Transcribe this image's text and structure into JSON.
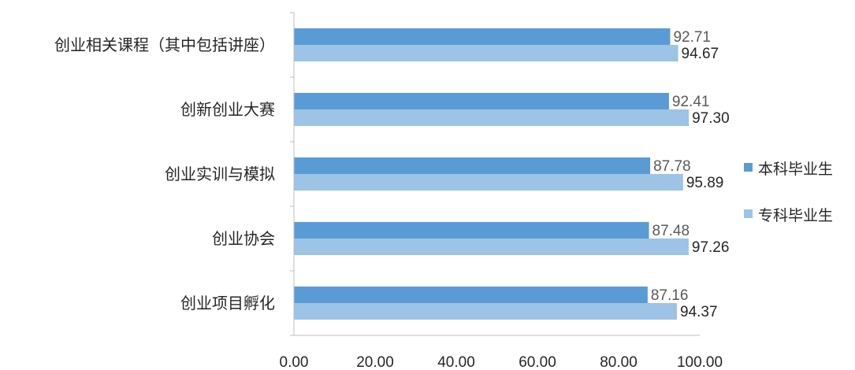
{
  "chart_data": {
    "type": "bar",
    "orientation": "horizontal",
    "categories": [
      "创业相关课程（其中包括讲座）",
      "创新创业大赛",
      "创业实训与模拟",
      "创业协会",
      "创业项目孵化"
    ],
    "series": [
      {
        "name": "本科毕业生",
        "color": "#5B9BD5",
        "values": [
          92.71,
          92.41,
          87.78,
          87.48,
          87.16
        ],
        "labels": [
          "92.71",
          "92.41",
          "87.78",
          "87.48",
          "87.16"
        ]
      },
      {
        "name": "专科毕业生",
        "color": "#9DC3E6",
        "values": [
          94.67,
          97.3,
          95.89,
          97.26,
          94.37
        ],
        "labels": [
          "94.67",
          "97.30",
          "95.89",
          "97.26",
          "94.37"
        ]
      }
    ],
    "xlim": [
      0,
      100
    ],
    "x_ticks": [
      "0.00",
      "20.00",
      "40.00",
      "60.00",
      "80.00",
      "100.00"
    ],
    "title": "",
    "xlabel": "",
    "ylabel": "",
    "grid": false,
    "legend_position": "right"
  }
}
